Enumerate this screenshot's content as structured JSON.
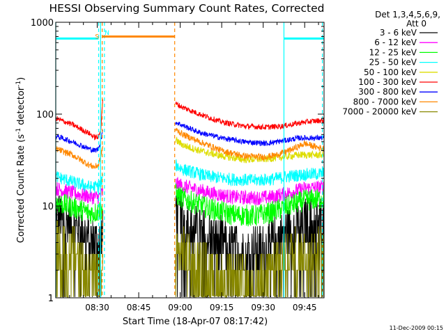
{
  "chart_data": {
    "type": "line",
    "title": "HESSI Observing Summary Count Rates, Corrected",
    "xlabel": "Start Time (18-Apr-07 08:17:42)",
    "ylabel_main": "Corrected Count Rate (s",
    "ylabel_sup1": "-1",
    "ylabel_mid": " detector",
    "ylabel_sup2": "-1",
    "ylabel_end": ")",
    "xlim": [
      20,
      117
    ],
    "ylim": [
      1,
      1000
    ],
    "yscale": "log",
    "x_ticks": [
      {
        "x": 35,
        "label": "08:30"
      },
      {
        "x": 50,
        "label": "08:45"
      },
      {
        "x": 65,
        "label": "09:00"
      },
      {
        "x": 80,
        "label": "09:15"
      },
      {
        "x": 95,
        "label": "09:30"
      },
      {
        "x": 110,
        "label": "09:45"
      }
    ],
    "x_minor_step": 5,
    "y_ticks": [
      {
        "y": 1,
        "label": "1"
      },
      {
        "y": 10,
        "label": "10"
      },
      {
        "y": 100,
        "label": "100"
      },
      {
        "y": 1000,
        "label": "1000"
      }
    ],
    "legend": {
      "placement": "right",
      "header_line1": "Det 1,3,4,5,6,9,",
      "header_line2": "Att 0"
    },
    "gap": [
      37.5,
      63
    ],
    "series": [
      {
        "name": "3 - 6 keV",
        "color": "#000000",
        "noise": 0.28,
        "points": [
          [
            20,
            8.2
          ],
          [
            28,
            5.8
          ],
          [
            33,
            4.2
          ],
          [
            35.5,
            3.9
          ],
          [
            37,
            5
          ],
          [
            63.3,
            10
          ],
          [
            66,
            7.5
          ],
          [
            72,
            5.2
          ],
          [
            80,
            4
          ],
          [
            88,
            3.2
          ],
          [
            96,
            3.3
          ],
          [
            100,
            4.5
          ],
          [
            106,
            6
          ],
          [
            117,
            7.3
          ]
        ]
      },
      {
        "name": "6 - 12 keV",
        "color": "#ff00ff",
        "noise": 0.08,
        "points": [
          [
            20,
            15.5
          ],
          [
            28,
            13.4
          ],
          [
            33,
            12.5
          ],
          [
            35.5,
            12.5
          ],
          [
            37,
            14
          ],
          [
            63.3,
            17.5
          ],
          [
            66,
            16.5
          ],
          [
            75,
            14
          ],
          [
            84,
            12.5
          ],
          [
            92,
            12.2
          ],
          [
            98,
            12.5
          ],
          [
            104,
            13.8
          ],
          [
            110,
            15.5
          ],
          [
            117,
            16
          ]
        ]
      },
      {
        "name": "12 - 25 keV",
        "color": "#00ff00",
        "noise": 0.12,
        "points": [
          [
            20,
            11
          ],
          [
            28,
            9.3
          ],
          [
            33,
            8.3
          ],
          [
            35.5,
            8.7
          ],
          [
            37,
            9.5
          ],
          [
            63.3,
            13.5
          ],
          [
            66,
            12
          ],
          [
            75,
            9.5
          ],
          [
            84,
            8
          ],
          [
            92,
            7.8
          ],
          [
            98,
            8.5
          ],
          [
            104,
            10
          ],
          [
            110,
            11.5
          ],
          [
            117,
            12
          ]
        ]
      },
      {
        "name": "25 - 50 keV",
        "color": "#00ffff",
        "noise": 0.07,
        "points": [
          [
            20,
            21
          ],
          [
            28,
            17.5
          ],
          [
            33,
            16
          ],
          [
            35.5,
            16.5
          ],
          [
            37,
            19
          ],
          [
            63.3,
            28
          ],
          [
            66,
            25
          ],
          [
            75,
            21
          ],
          [
            84,
            19.5
          ],
          [
            92,
            19
          ],
          [
            98,
            19.5
          ],
          [
            104,
            21
          ],
          [
            110,
            22
          ],
          [
            117,
            22.5
          ]
        ]
      },
      {
        "name": "50 - 100 keV",
        "color": "#dddd00",
        "noise": 0.04,
        "points": [
          [
            63.3,
            52
          ],
          [
            66,
            46
          ],
          [
            72,
            40
          ],
          [
            80,
            35
          ],
          [
            88,
            32
          ],
          [
            96,
            32.5
          ],
          [
            102,
            34
          ],
          [
            108,
            36
          ],
          [
            117,
            36
          ]
        ]
      },
      {
        "name": "100 - 300 keV",
        "color": "#ff0000",
        "noise": 0.03,
        "points": [
          [
            20,
            90
          ],
          [
            26,
            77
          ],
          [
            32,
            62
          ],
          [
            34,
            56
          ],
          [
            35.5,
            56
          ],
          [
            36.3,
            70
          ],
          [
            37,
            150
          ],
          [
            63.3,
            130
          ],
          [
            66,
            118
          ],
          [
            72,
            100
          ],
          [
            80,
            82
          ],
          [
            88,
            74
          ],
          [
            96,
            72
          ],
          [
            102,
            74
          ],
          [
            110,
            82
          ],
          [
            117,
            86
          ]
        ]
      },
      {
        "name": "300 - 800 keV",
        "color": "#0000ff",
        "noise": 0.03,
        "points": [
          [
            20,
            58
          ],
          [
            26,
            50
          ],
          [
            32,
            42
          ],
          [
            34,
            40
          ],
          [
            35.5,
            42
          ],
          [
            37,
            65
          ],
          [
            63.3,
            82
          ],
          [
            66,
            75
          ],
          [
            72,
            63
          ],
          [
            80,
            55
          ],
          [
            88,
            50
          ],
          [
            96,
            48
          ],
          [
            102,
            51
          ],
          [
            108,
            55
          ],
          [
            117,
            55
          ]
        ]
      },
      {
        "name": "800 - 7000 keV",
        "color": "#ff8800",
        "noise": 0.035,
        "points": [
          [
            20,
            42
          ],
          [
            26,
            36
          ],
          [
            32,
            28
          ],
          [
            34,
            26.5
          ],
          [
            35.5,
            28
          ],
          [
            37,
            45
          ],
          [
            63.3,
            68
          ],
          [
            66,
            60
          ],
          [
            72,
            50
          ],
          [
            80,
            40
          ],
          [
            88,
            35
          ],
          [
            95,
            34
          ],
          [
            100,
            36
          ],
          [
            106,
            42
          ],
          [
            110,
            48
          ],
          [
            114,
            44
          ],
          [
            117,
            42
          ]
        ]
      },
      {
        "name": "7000 - 20000 keV",
        "color": "#888800",
        "noise": 0.3,
        "points": [
          [
            20,
            3.5
          ],
          [
            28,
            3
          ],
          [
            33,
            1.7
          ],
          [
            35.5,
            1.5
          ],
          [
            37,
            1.8
          ],
          [
            63.3,
            3
          ],
          [
            66,
            3
          ],
          [
            72,
            2.2
          ],
          [
            76,
            1.8
          ],
          [
            82,
            1.4
          ],
          [
            90,
            1.3
          ],
          [
            96,
            1.5
          ],
          [
            100,
            2.5
          ],
          [
            106,
            3
          ],
          [
            117,
            3
          ]
        ]
      }
    ],
    "flags": [
      {
        "label": "S",
        "color": "#ff8800",
        "label_x": 34.2,
        "start": 36.8,
        "end": 63,
        "y": 700
      }
    ],
    "flag_n": {
      "label": "N",
      "color": "#00ffff",
      "label_x": 37.7
    },
    "cyan_segments": [
      [
        20,
        35.5
      ],
      [
        102.5,
        117
      ]
    ],
    "cyan_segment_y": 665,
    "vlines": [
      {
        "x": 20,
        "color": "#00ffff",
        "dashed": false
      },
      {
        "x": 36.2,
        "color": "#00ffff",
        "dashed": false
      },
      {
        "x": 35.5,
        "color": "#00ffff",
        "dashed": true
      },
      {
        "x": 37.6,
        "color": "#00ffff",
        "dashed": true
      },
      {
        "x": 36.8,
        "color": "#ff8800",
        "dashed": true
      },
      {
        "x": 63,
        "color": "#ff8800",
        "dashed": true
      },
      {
        "x": 102.5,
        "color": "#00ffff",
        "dashed": false
      },
      {
        "x": 116.4,
        "color": "#00ffff",
        "dashed": true
      }
    ],
    "footer_date": "11-Dec-2009 00:15"
  }
}
